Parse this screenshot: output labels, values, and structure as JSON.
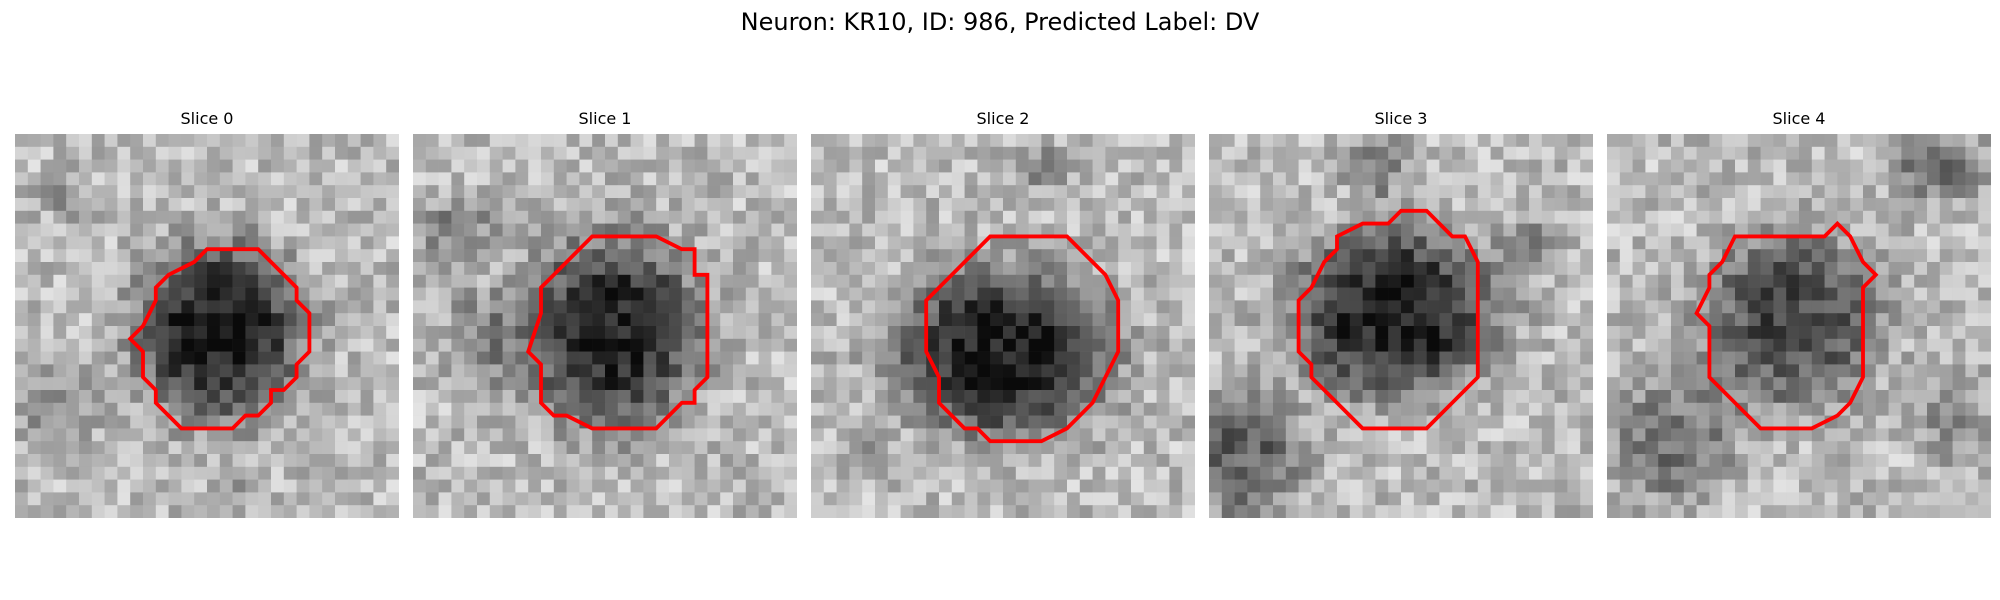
{
  "figure": {
    "title": "Neuron: KR10, ID: 986, Predicted Label: DV",
    "contour_color": "#ff0000"
  },
  "slices": [
    {
      "title": "Slice 0"
    },
    {
      "title": "Slice 1"
    },
    {
      "title": "Slice 2"
    },
    {
      "title": "Slice 3"
    },
    {
      "title": "Slice 4"
    }
  ]
}
